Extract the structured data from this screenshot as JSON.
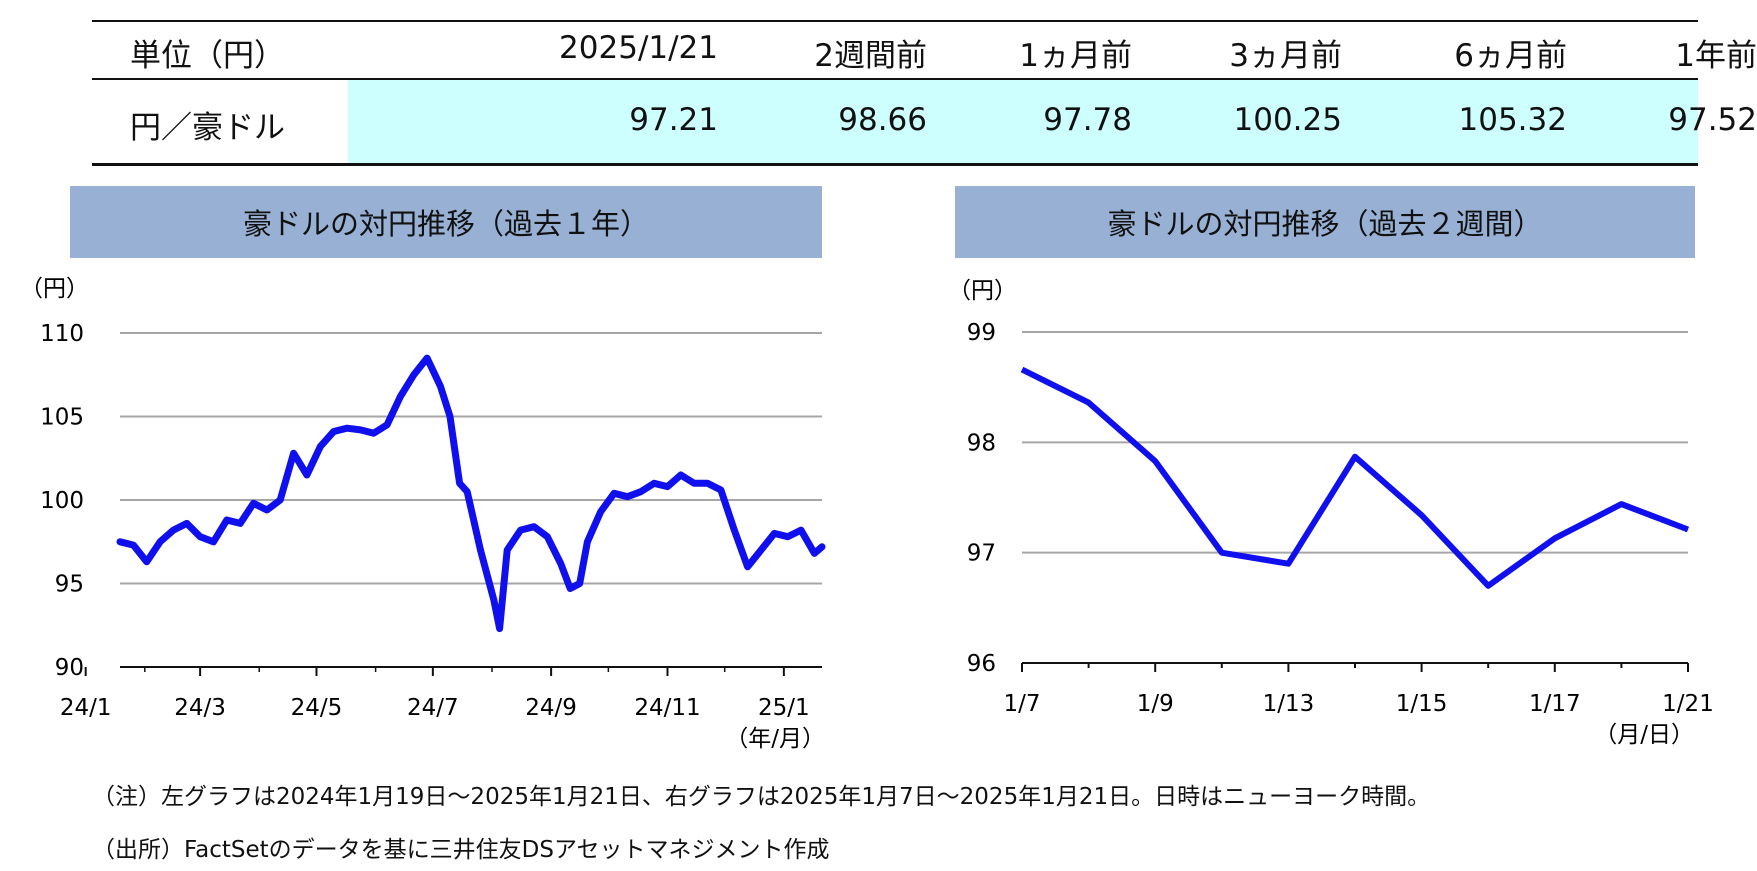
{
  "table": {
    "unit_label": "単位（円）",
    "columns": [
      "2025/1/21",
      "2週間前",
      "1ヵ月前",
      "3ヵ月前",
      "6ヵ月前",
      "1年前"
    ],
    "row_label": "円／豪ドル",
    "values": [
      "97.21",
      "98.66",
      "97.78",
      "100.25",
      "105.32",
      "97.52"
    ]
  },
  "charts": {
    "left_title": "豪ドルの対円推移（過去１年）",
    "right_title": "豪ドルの対円推移（過去２週間）",
    "left_unit": "（円）",
    "right_unit": "（円）",
    "left_xunit": "（年/月）",
    "right_xunit": "（月/日）"
  },
  "notes": {
    "note1": "（注）左グラフは2024年1月19日～2025年1月21日、右グラフは2025年1月7日～2025年1月21日。日時はニューヨーク時間。",
    "note2": "（出所）FactSetのデータを基に三井住友DSアセットマネジメント作成"
  },
  "colors": {
    "line": "#1010ee",
    "title_bg": "#98b0d3",
    "row_bg": "#ccfffe",
    "grid": "#a6a6a6"
  },
  "chart_data": [
    {
      "type": "line",
      "title": "豪ドルの対円推移（過去１年）",
      "ylabel": "（円）",
      "xlabel": "（年/月）",
      "ylim": [
        90,
        110
      ],
      "yticks": [
        "90",
        "95",
        "100",
        "105",
        "110"
      ],
      "xticks": [
        "24/1",
        "24/3",
        "24/5",
        "24/7",
        "24/9",
        "24/11",
        "25/1"
      ],
      "grid": true,
      "series": [
        {
          "x": [
            "2024-01-19",
            "2024-01-26",
            "2024-02-02",
            "2024-02-09",
            "2024-02-16",
            "2024-02-23",
            "2024-03-01",
            "2024-03-08",
            "2024-03-15",
            "2024-03-22",
            "2024-03-29",
            "2024-04-05",
            "2024-04-12",
            "2024-04-19",
            "2024-04-26",
            "2024-05-03",
            "2024-05-10",
            "2024-05-17",
            "2024-05-24",
            "2024-05-31",
            "2024-06-07",
            "2024-06-14",
            "2024-06-21",
            "2024-06-28",
            "2024-07-05",
            "2024-07-10",
            "2024-07-15",
            "2024-07-19",
            "2024-07-26",
            "2024-08-02",
            "2024-08-05",
            "2024-08-09",
            "2024-08-16",
            "2024-08-23",
            "2024-08-30",
            "2024-09-06",
            "2024-09-11",
            "2024-09-16",
            "2024-09-20",
            "2024-09-27",
            "2024-10-04",
            "2024-10-11",
            "2024-10-18",
            "2024-10-25",
            "2024-11-01",
            "2024-11-08",
            "2024-11-15",
            "2024-11-22",
            "2024-11-29",
            "2024-12-06",
            "2024-12-13",
            "2024-12-20",
            "2024-12-27",
            "2025-01-03",
            "2025-01-10",
            "2025-01-17",
            "2025-01-21"
          ],
          "values": [
            97.5,
            97.3,
            96.3,
            97.5,
            98.2,
            98.6,
            97.8,
            97.5,
            98.8,
            98.6,
            99.8,
            99.4,
            100.0,
            102.8,
            101.5,
            103.2,
            104.1,
            104.3,
            104.2,
            104.0,
            104.5,
            106.2,
            107.5,
            108.5,
            106.8,
            105.0,
            101.0,
            100.5,
            97.0,
            94.0,
            92.3,
            97.0,
            98.2,
            98.4,
            97.8,
            96.2,
            94.7,
            95.0,
            97.5,
            99.3,
            100.4,
            100.2,
            100.5,
            101.0,
            100.8,
            101.5,
            101.0,
            101.0,
            100.6,
            98.2,
            96.0,
            97.0,
            98.0,
            97.8,
            98.2,
            96.8,
            97.2
          ]
        }
      ]
    },
    {
      "type": "line",
      "title": "豪ドルの対円推移（過去２週間）",
      "ylabel": "（円）",
      "xlabel": "（月/日）",
      "ylim": [
        96,
        99
      ],
      "yticks": [
        "96",
        "97",
        "98",
        "99"
      ],
      "xticks": [
        "1/7",
        "1/9",
        "1/13",
        "1/15",
        "1/17",
        "1/21"
      ],
      "grid": true,
      "categories": [
        "1/7",
        "1/8",
        "1/9",
        "1/10",
        "1/13",
        "1/14",
        "1/15",
        "1/16",
        "1/17",
        "1/20",
        "1/21"
      ],
      "series": [
        {
          "values": [
            98.66,
            98.36,
            97.83,
            97.0,
            96.9,
            97.87,
            97.34,
            96.7,
            97.13,
            97.44,
            97.21
          ]
        }
      ]
    }
  ]
}
